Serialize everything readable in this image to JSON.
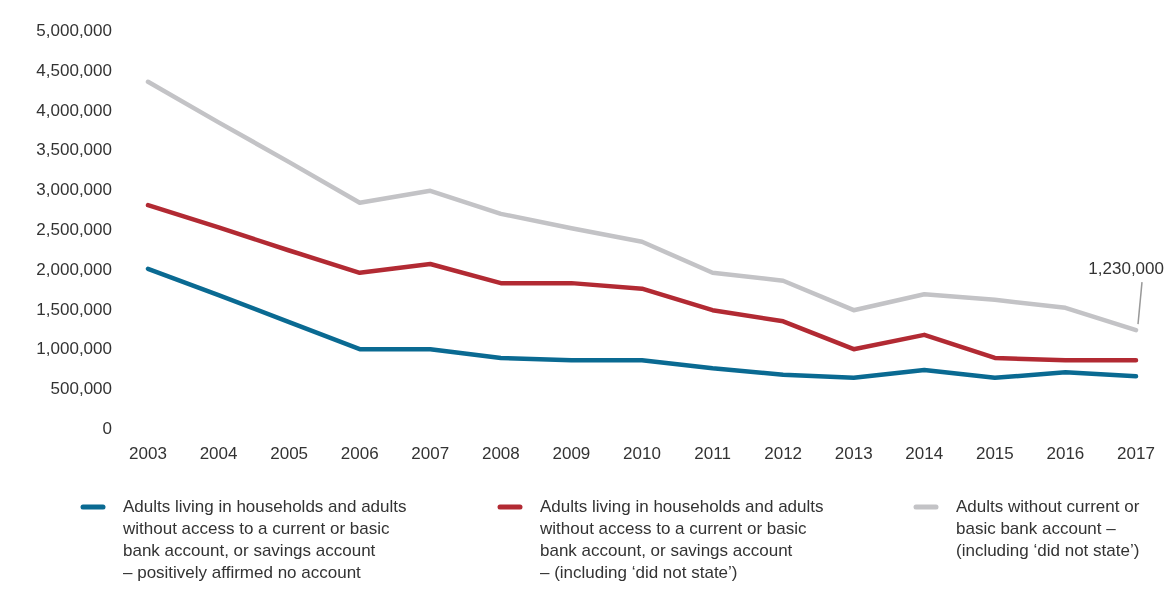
{
  "chart_data": {
    "type": "line",
    "x": [
      2003,
      2004,
      2005,
      2006,
      2007,
      2008,
      2009,
      2010,
      2011,
      2012,
      2013,
      2014,
      2015,
      2016,
      2017
    ],
    "xlim": [
      2003,
      2017
    ],
    "xticks": [
      2003,
      2004,
      2005,
      2006,
      2007,
      2008,
      2009,
      2010,
      2011,
      2012,
      2013,
      2014,
      2015,
      2016,
      2017
    ],
    "ylim": [
      0,
      5000000
    ],
    "yticks": [
      {
        "value": 0,
        "label": "0"
      },
      {
        "value": 500000,
        "label": "500,000"
      },
      {
        "value": 1000000,
        "label": "1,000,000"
      },
      {
        "value": 1500000,
        "label": "1,500,000"
      },
      {
        "value": 2000000,
        "label": "2,000,000"
      },
      {
        "value": 2500000,
        "label": "2,500,000"
      },
      {
        "value": 3000000,
        "label": "3,000,000"
      },
      {
        "value": 3500000,
        "label": "3,500,000"
      },
      {
        "value": 4000000,
        "label": "4,000,000"
      },
      {
        "value": 4500000,
        "label": "4,500,000"
      },
      {
        "value": 5000000,
        "label": "5,000,000"
      }
    ],
    "grid": false,
    "legend": "bottom",
    "marker": "none",
    "line_style": "solid",
    "series": [
      {
        "name": "Adults living in households and adults without access to a current or basic bank account, or savings account – positively affirmed no account",
        "color": "#0a6a92",
        "values": [
          2000000,
          1670000,
          1330000,
          990000,
          990000,
          880000,
          850000,
          850000,
          750000,
          670000,
          630000,
          730000,
          630000,
          700000,
          650000
        ]
      },
      {
        "name": "Adults living in households and adults without access to a current or basic bank account, or savings account – (including ‘did not state’)",
        "color": "#b22a33",
        "values": [
          2800000,
          2520000,
          2230000,
          1950000,
          2060000,
          1820000,
          1820000,
          1750000,
          1480000,
          1340000,
          990000,
          1170000,
          880000,
          850000,
          850000
        ]
      },
      {
        "name": "Adults without current or basic bank account – (including ‘did not state’)",
        "color": "#c3c3c6",
        "values": [
          4350000,
          3840000,
          3340000,
          2830000,
          2980000,
          2690000,
          2510000,
          2340000,
          1950000,
          1850000,
          1480000,
          1680000,
          1610000,
          1510000,
          1230000
        ]
      }
    ],
    "annotations": [
      {
        "text": "1,230,000",
        "x": 2017,
        "y": 1230000
      }
    ]
  }
}
